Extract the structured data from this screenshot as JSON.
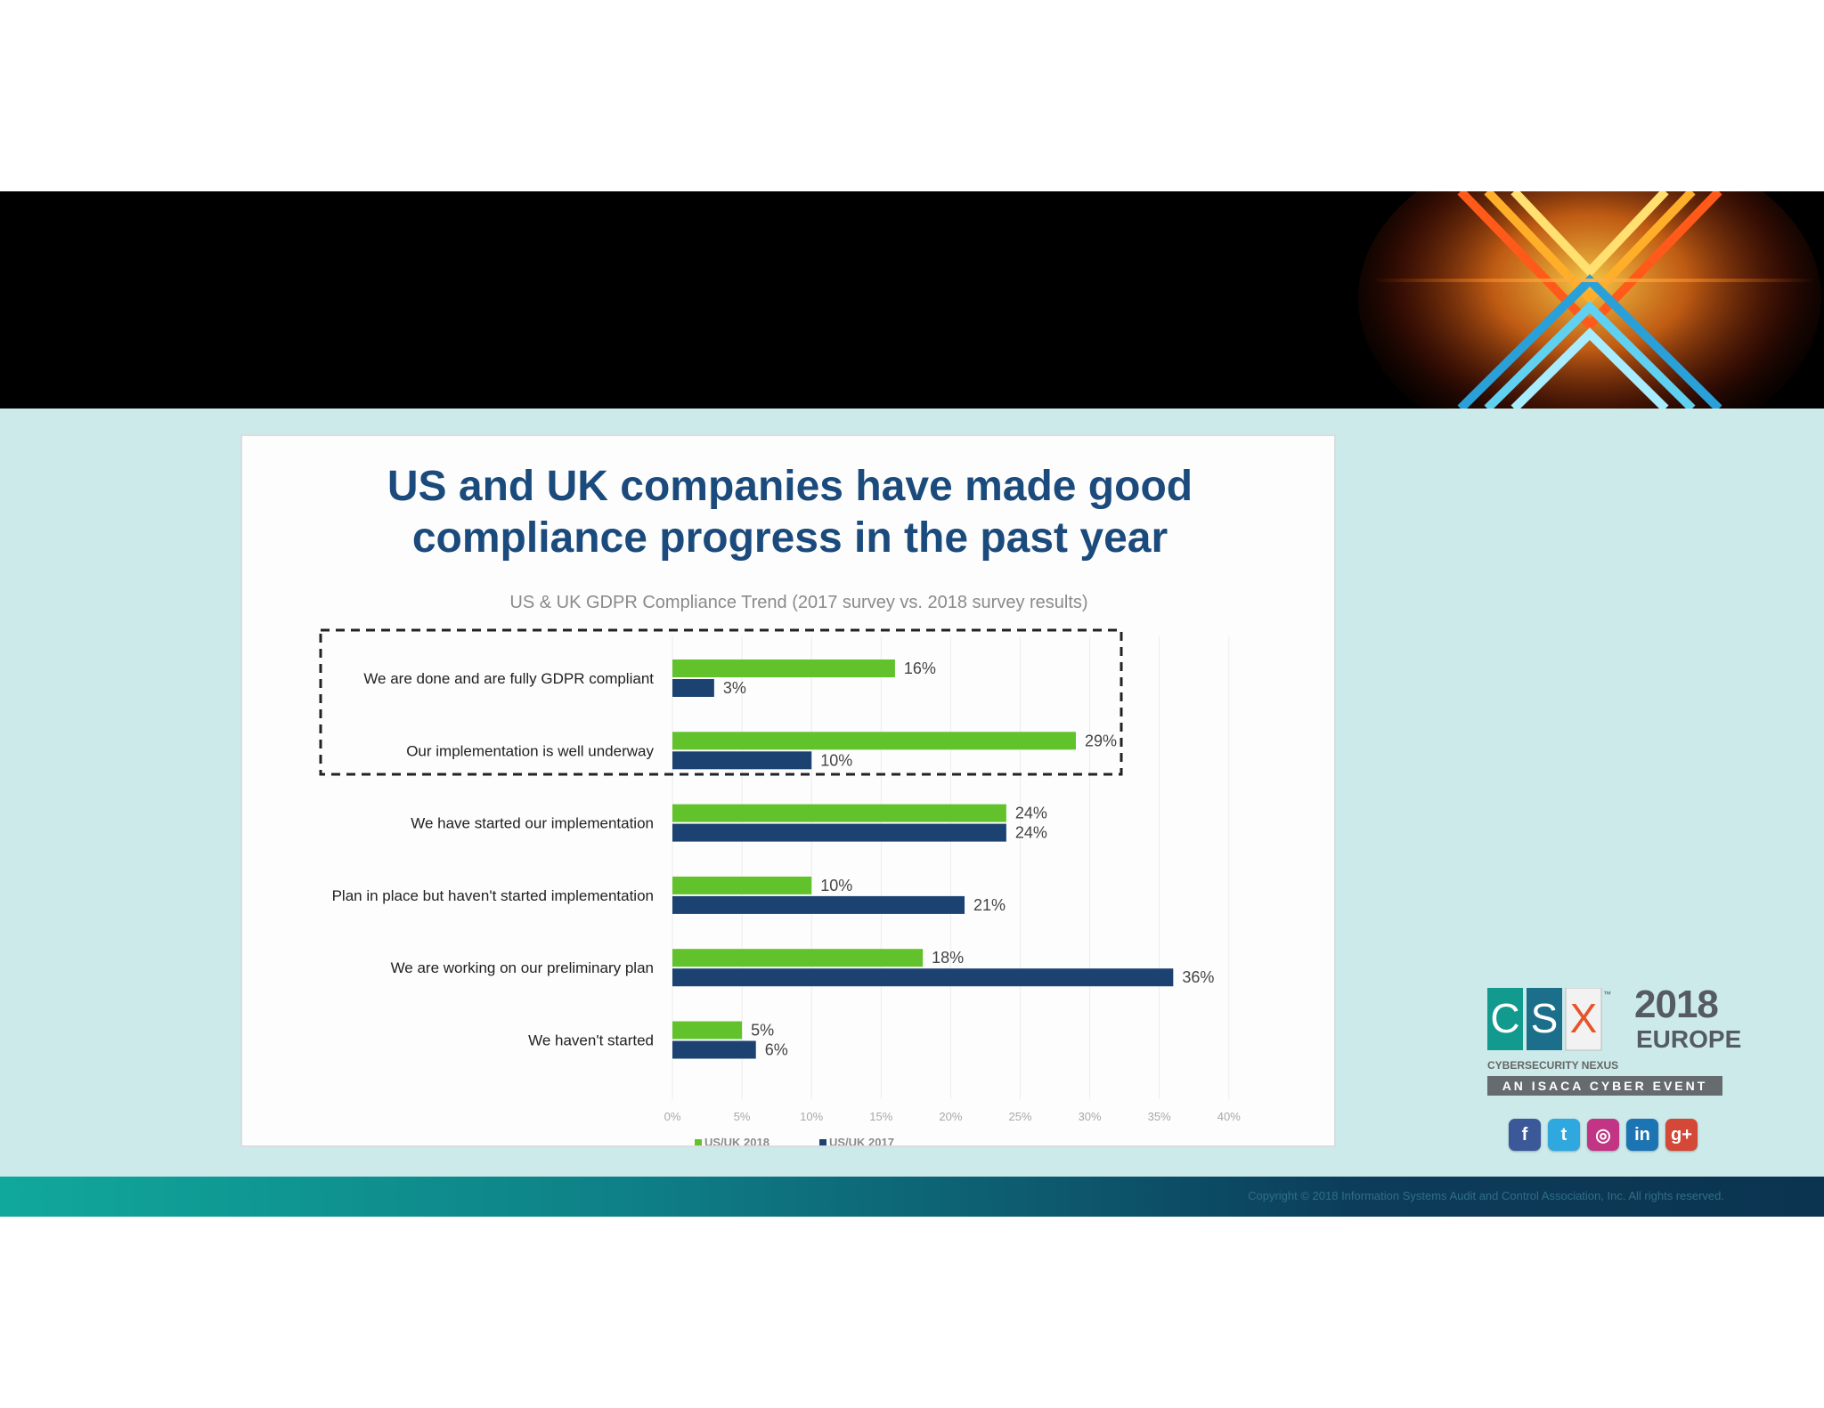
{
  "slide": {
    "headline_line1": "US and UK companies have made good",
    "headline_line2": "compliance progress in the past year",
    "subtitle": "US & UK GDPR Compliance Trend (2017 survey vs. 2018 survey results)",
    "copyright": "Copyright © 2018 Information Systems Audit and Control Association, Inc. All rights reserved."
  },
  "logo": {
    "letters": [
      "C",
      "S",
      "X"
    ],
    "year": "2018",
    "region": "EUROPE",
    "tagline": "CYBERSECURITY NEXUS",
    "event": "AN ISACA CYBER EVENT",
    "tm": "™"
  },
  "social": [
    {
      "name": "facebook-icon",
      "glyph": "f",
      "color": "#3b5998"
    },
    {
      "name": "twitter-icon",
      "glyph": "t",
      "color": "#2fa8e0"
    },
    {
      "name": "instagram-icon",
      "glyph": "◎",
      "color": "#c13584"
    },
    {
      "name": "linkedin-icon",
      "glyph": "in",
      "color": "#1d74b3"
    },
    {
      "name": "google-plus-icon",
      "glyph": "g+",
      "color": "#d34836"
    }
  ],
  "chart_data": {
    "type": "bar",
    "orientation": "horizontal",
    "title": "US & UK GDPR Compliance Trend (2017 survey vs. 2018 survey results)",
    "categories": [
      "We are done and are fully GDPR compliant",
      "Our implementation is well underway",
      "We have started our implementation",
      "Plan in place but haven't started implementation",
      "We are working on our preliminary plan",
      "We haven't started"
    ],
    "series": [
      {
        "name": "US/UK 2018",
        "values": [
          16,
          29,
          24,
          10,
          18,
          5
        ],
        "color": "#62c22c"
      },
      {
        "name": "US/UK 2017",
        "values": [
          3,
          10,
          24,
          21,
          36,
          6
        ],
        "color": "#1b4270"
      }
    ],
    "value_labels": {
      "US/UK 2018": [
        "16%",
        "29%",
        "24%",
        "10%",
        "18%",
        "5%"
      ],
      "US/UK 2017": [
        "3%",
        "10%",
        "24%",
        "21%",
        "36%",
        "6%"
      ]
    },
    "xlim": [
      0,
      40
    ],
    "x_ticks": [
      "0%",
      "5%",
      "10%",
      "15%",
      "20%",
      "25%",
      "30%",
      "35%",
      "40%"
    ],
    "grid": true,
    "legend_position": "bottom-left",
    "highlight": "dashed box around the first two categories"
  }
}
